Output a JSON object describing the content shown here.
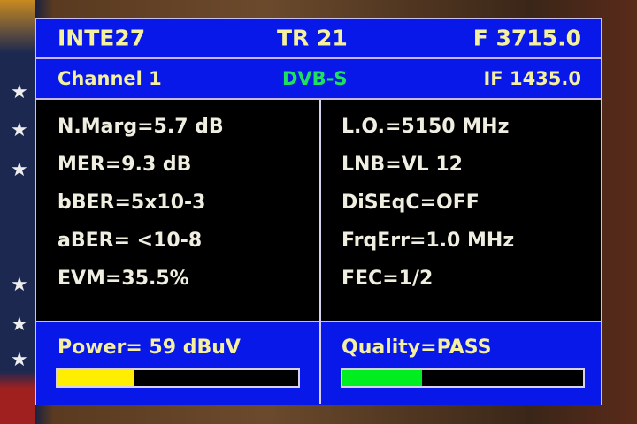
{
  "header": {
    "satellite": "INTE27",
    "transponder": "TR 21",
    "frequency": "F 3715.0"
  },
  "subheader": {
    "channel": "Channel 1",
    "standard": "DVB-S",
    "if_freq": "IF 1435.0",
    "standard_color": "#20e060"
  },
  "left_params": [
    "N.Marg=5.7 dB",
    "MER=9.3 dB",
    "bBER=5x10-3",
    "aBER= <10-8",
    "EVM=35.5%"
  ],
  "right_params": [
    "L.O.=5150 MHz",
    "LNB=VL 12",
    "DiSEqC=OFF",
    "FrqErr=1.0 MHz",
    "FEC=1/2"
  ],
  "power": {
    "label": "Power= 59 dBuV",
    "level_percent": 32,
    "color": "#ffee00"
  },
  "quality": {
    "label": "Quality=PASS",
    "level_percent": 33,
    "color": "#00ee20"
  }
}
